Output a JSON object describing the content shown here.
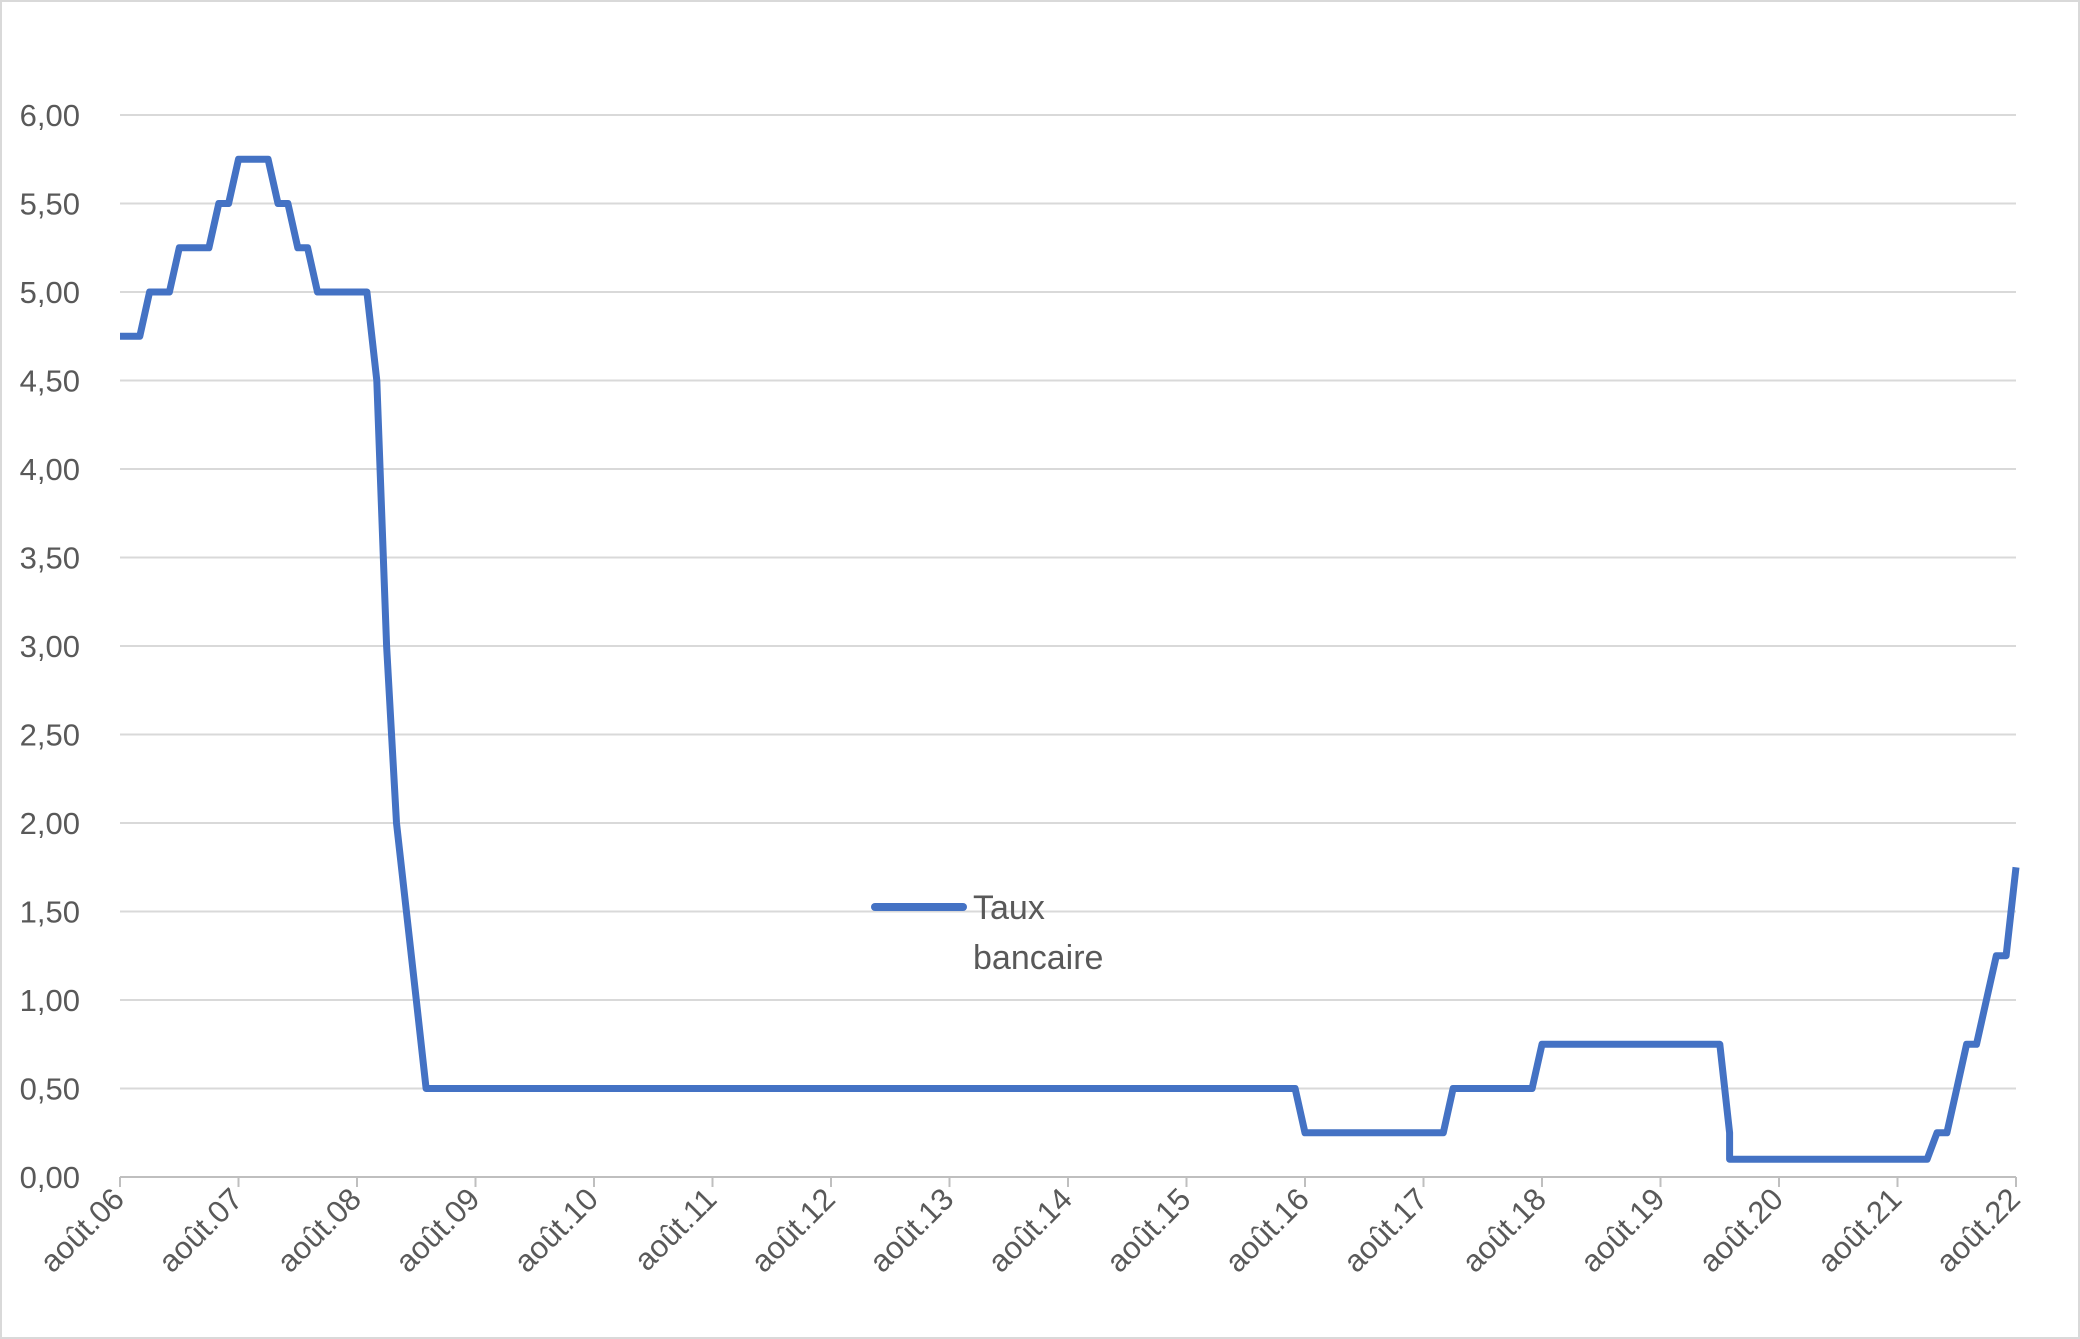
{
  "chart_data": {
    "type": "line",
    "title": "",
    "xlabel": "",
    "ylabel": "",
    "ylim": [
      0,
      6
    ],
    "yticks": [
      "0,00",
      "0,50",
      "1,00",
      "1,50",
      "2,00",
      "2,50",
      "3,00",
      "3,50",
      "4,00",
      "4,50",
      "5,00",
      "5,50",
      "6,00"
    ],
    "xticks": [
      "août.06",
      "août.07",
      "août.08",
      "août.09",
      "août.10",
      "août.11",
      "août.12",
      "août.13",
      "août.14",
      "août.15",
      "août.16",
      "août.17",
      "août.18",
      "août.19",
      "août.20",
      "août.21",
      "août.22"
    ],
    "grid": "horizontal",
    "legend": {
      "position": "center",
      "lines": [
        "Taux",
        "bancaire"
      ]
    },
    "series": [
      {
        "name": "Taux bancaire",
        "color": "#4472C4",
        "points": [
          [
            "2006-08",
            4.75
          ],
          [
            "2006-10",
            4.75
          ],
          [
            "2006-11",
            5.0
          ],
          [
            "2007-01",
            5.0
          ],
          [
            "2007-02",
            5.25
          ],
          [
            "2007-05",
            5.25
          ],
          [
            "2007-06",
            5.5
          ],
          [
            "2007-07",
            5.5
          ],
          [
            "2007-08",
            5.75
          ],
          [
            "2007-11",
            5.75
          ],
          [
            "2007-12",
            5.5
          ],
          [
            "2008-01",
            5.5
          ],
          [
            "2008-02",
            5.25
          ],
          [
            "2008-03",
            5.25
          ],
          [
            "2008-04",
            5.0
          ],
          [
            "2008-09",
            5.0
          ],
          [
            "2008-10",
            4.5
          ],
          [
            "2008-11",
            3.0
          ],
          [
            "2008-12",
            2.0
          ],
          [
            "2009-01",
            1.5
          ],
          [
            "2009-02",
            1.0
          ],
          [
            "2009-03",
            0.5
          ],
          [
            "2016-07",
            0.5
          ],
          [
            "2016-08",
            0.25
          ],
          [
            "2017-10",
            0.25
          ],
          [
            "2017-11",
            0.5
          ],
          [
            "2018-07",
            0.5
          ],
          [
            "2018-08",
            0.75
          ],
          [
            "2020-02",
            0.75
          ],
          [
            "2020-03",
            0.25
          ],
          [
            "2020-03",
            0.1
          ],
          [
            "2021-11",
            0.1
          ],
          [
            "2021-12",
            0.25
          ],
          [
            "2022-01",
            0.25
          ],
          [
            "2022-02",
            0.5
          ],
          [
            "2022-03",
            0.75
          ],
          [
            "2022-04",
            0.75
          ],
          [
            "2022-05",
            1.0
          ],
          [
            "2022-06",
            1.25
          ],
          [
            "2022-07",
            1.25
          ],
          [
            "2022-08",
            1.75
          ]
        ]
      }
    ]
  }
}
